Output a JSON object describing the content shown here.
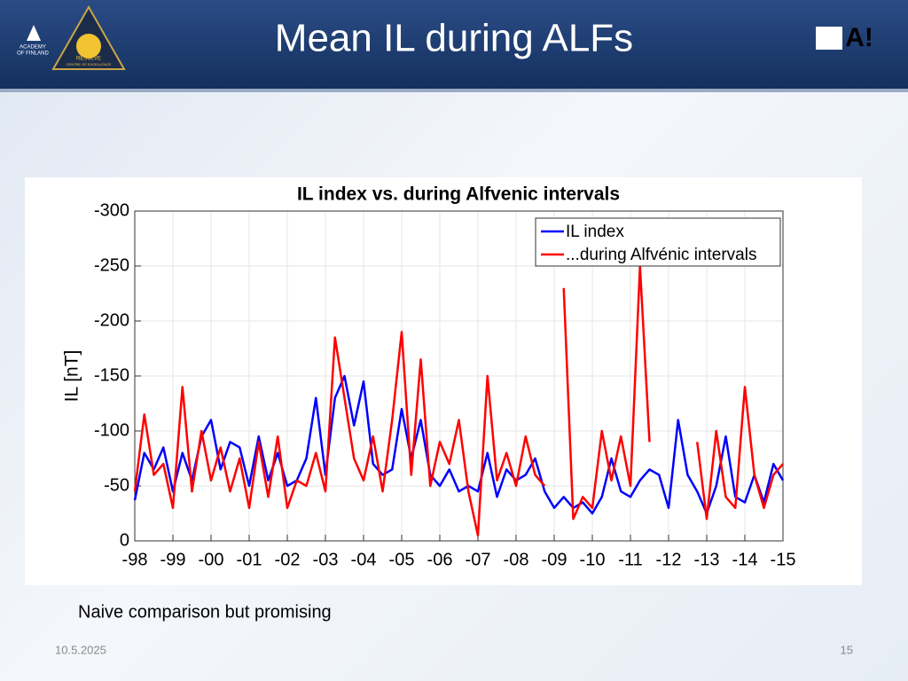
{
  "header": {
    "title": "Mean IL during ALFs",
    "logo_left": [
      "ACADEMY",
      "OF FINLAND"
    ],
    "logo_center": [
      "RESOLVE",
      "CENTRE OF EXCELLENCE"
    ],
    "logo_right": "A!"
  },
  "chart_data": {
    "type": "line",
    "title": "IL index vs. during Alfvenic intervals",
    "ylabel": "IL [nT]",
    "x": [
      1998,
      1998.25,
      1998.5,
      1998.75,
      1999,
      1999.25,
      1999.5,
      1999.75,
      2000,
      2000.25,
      2000.5,
      2000.75,
      2001,
      2001.25,
      2001.5,
      2001.75,
      2002,
      2002.25,
      2002.5,
      2002.75,
      2003,
      2003.25,
      2003.5,
      2003.75,
      2004,
      2004.25,
      2004.5,
      2004.75,
      2005,
      2005.25,
      2005.5,
      2005.75,
      2006,
      2006.25,
      2006.5,
      2006.75,
      2007,
      2007.25,
      2007.5,
      2007.75,
      2008,
      2008.25,
      2008.5,
      2008.75,
      2009,
      2009.25,
      2009.5,
      2009.75,
      2010,
      2010.25,
      2010.5,
      2010.75,
      2011,
      2011.25,
      2011.5,
      2011.75,
      2012,
      2012.25,
      2012.5,
      2012.75,
      2013,
      2013.25,
      2013.5,
      2013.75,
      2014,
      2014.25,
      2014.5,
      2014.75,
      2015
    ],
    "series": [
      {
        "name": "IL index",
        "color": "#0000ff",
        "values": [
          -37,
          -80,
          -65,
          -85,
          -45,
          -80,
          -55,
          -95,
          -110,
          -65,
          -90,
          -85,
          -50,
          -95,
          -55,
          -80,
          -50,
          -55,
          -75,
          -130,
          -60,
          -130,
          -150,
          -105,
          -145,
          -70,
          -60,
          -65,
          -120,
          -75,
          -110,
          -60,
          -50,
          -65,
          -45,
          -50,
          -45,
          -80,
          -40,
          -65,
          -55,
          -60,
          -75,
          -45,
          -30,
          -40,
          -30,
          -35,
          -25,
          -40,
          -75,
          -45,
          -40,
          -55,
          -65,
          -60,
          -30,
          -110,
          -60,
          -45,
          -25,
          -50,
          -95,
          -40,
          -35,
          -60,
          -35,
          -70,
          -55
        ]
      },
      {
        "name": "...during Alfvénic intervals",
        "color": "#ff0000",
        "values": [
          -45,
          -115,
          -60,
          -70,
          -30,
          -140,
          -45,
          -100,
          -55,
          -85,
          -45,
          -75,
          -30,
          -90,
          -40,
          -95,
          -30,
          -55,
          -50,
          -80,
          -45,
          -185,
          -130,
          -75,
          -55,
          -95,
          -45,
          -110,
          -190,
          -60,
          -165,
          -50,
          -90,
          -70,
          -110,
          -45,
          -5,
          -150,
          -55,
          -80,
          -50,
          -95,
          -60,
          -50,
          null,
          -230,
          -20,
          -40,
          -30,
          -100,
          -55,
          -95,
          -50,
          -250,
          -90,
          null,
          null,
          null,
          null,
          -90,
          -20,
          -100,
          -40,
          -30,
          -140,
          -60,
          -30,
          -60,
          -70
        ]
      }
    ],
    "xlim": [
      1998,
      2015
    ],
    "xticks": [
      {
        "value": 1998,
        "label": "-98"
      },
      {
        "value": 1999,
        "label": "-99"
      },
      {
        "value": 2000,
        "label": "-00"
      },
      {
        "value": 2001,
        "label": "-01"
      },
      {
        "value": 2002,
        "label": "-02"
      },
      {
        "value": 2003,
        "label": "-03"
      },
      {
        "value": 2004,
        "label": "-04"
      },
      {
        "value": 2005,
        "label": "-05"
      },
      {
        "value": 2006,
        "label": "-06"
      },
      {
        "value": 2007,
        "label": "-07"
      },
      {
        "value": 2008,
        "label": "-08"
      },
      {
        "value": 2009,
        "label": "-09"
      },
      {
        "value": 2010,
        "label": "-10"
      },
      {
        "value": 2011,
        "label": "-11"
      },
      {
        "value": 2012,
        "label": "-12"
      },
      {
        "value": 2013,
        "label": "-13"
      },
      {
        "value": 2014,
        "label": "-14"
      },
      {
        "value": 2015,
        "label": "-15"
      }
    ],
    "ylim": [
      0,
      -300
    ],
    "yticks": [
      -300,
      -250,
      -200,
      -150,
      -100,
      -50,
      0
    ],
    "grid": true,
    "legend": "upper right"
  },
  "footer": {
    "note": "Naive comparison but promising",
    "date": "10.5.2025",
    "page": "15"
  }
}
